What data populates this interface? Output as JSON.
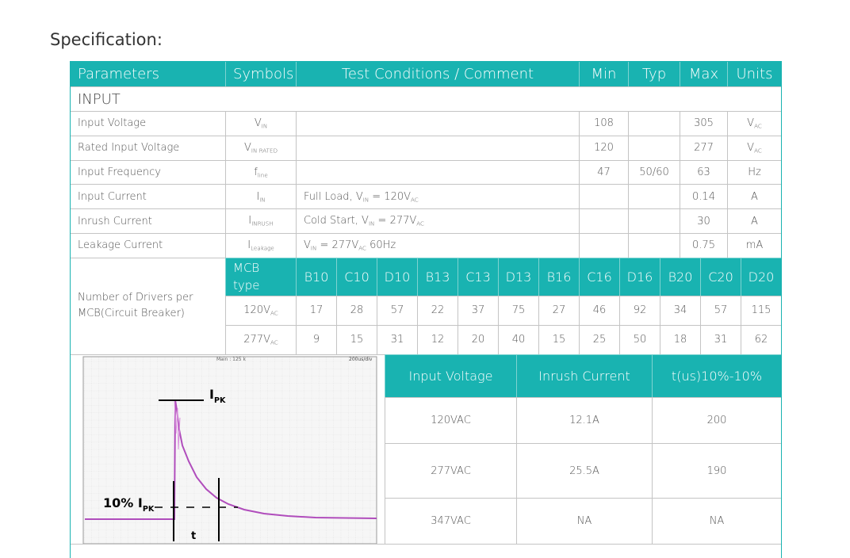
{
  "heading": "Specification:",
  "table": {
    "header": [
      "Parameters",
      "Symbols",
      "Test Conditions / Comment",
      "Min",
      "Typ",
      "Max",
      "Units"
    ],
    "section": "INPUT",
    "rows": [
      {
        "parameter": "Input Voltage",
        "symbol": [
          {
            "text": "V"
          },
          {
            "sub": "IN"
          }
        ],
        "min": 108,
        "max": 305,
        "units": [
          {
            "text": "V"
          },
          {
            "sub": "AC"
          }
        ]
      },
      {
        "parameter": "Rated Input Voltage",
        "symbol": [
          {
            "text": "V"
          },
          {
            "sub": "IN RATED"
          }
        ],
        "min": 120,
        "max": 277,
        "units": [
          {
            "text": "V"
          },
          {
            "sub": "AC"
          }
        ]
      },
      {
        "parameter": "Input Frequency",
        "symbol": [
          {
            "text": "f"
          },
          {
            "sub": "line"
          }
        ],
        "min": 47,
        "typ": "50/60",
        "max": 63,
        "units": [
          {
            "text": "Hz"
          }
        ]
      },
      {
        "parameter": "Input Current",
        "symbol": [
          {
            "text": "I"
          },
          {
            "sub": "IN"
          }
        ],
        "condition": [
          {
            "text": "Full Load, V"
          },
          {
            "sub": "IN"
          },
          {
            "text": " = 120V"
          },
          {
            "sub": "AC"
          }
        ],
        "max": 0.14,
        "units": [
          {
            "text": "A"
          }
        ]
      },
      {
        "parameter": "Inrush Current",
        "symbol": [
          {
            "text": "I"
          },
          {
            "sub": "INRUSH"
          }
        ],
        "condition": [
          {
            "text": "Cold Start, V"
          },
          {
            "sub": "IN"
          },
          {
            "text": " = 277V"
          },
          {
            "sub": "AC"
          }
        ],
        "max": 30,
        "units": [
          {
            "text": "A"
          }
        ]
      },
      {
        "parameter": "Leakage Current",
        "symbol": [
          {
            "text": "I"
          },
          {
            "sub": "Leakage"
          }
        ],
        "condition": [
          {
            "text": "V"
          },
          {
            "sub": "IN"
          },
          {
            "text": " = 277V"
          },
          {
            "sub": "AC"
          },
          {
            "text": " 60Hz"
          }
        ],
        "max": 0.75,
        "units": [
          {
            "text": "mA"
          }
        ]
      }
    ],
    "mcb": {
      "label": "Number of Drivers per MCB(Circuit Breaker)",
      "type_label": "MCB type",
      "types": [
        "B10",
        "C10",
        "D10",
        "B13",
        "C13",
        "D13",
        "B16",
        "C16",
        "D16",
        "B20",
        "C20",
        "D20"
      ],
      "rows": [
        {
          "voltage": [
            {
              "text": "120V"
            },
            {
              "sub": "AC"
            }
          ],
          "counts": [
            17,
            28,
            57,
            22,
            37,
            75,
            27,
            46,
            92,
            34,
            57,
            115
          ]
        },
        {
          "voltage": [
            {
              "text": "277V"
            },
            {
              "sub": "AC"
            }
          ],
          "counts": [
            9,
            15,
            31,
            12,
            20,
            40,
            15,
            25,
            50,
            18,
            31,
            62
          ]
        }
      ]
    }
  },
  "scope": {
    "top_left": "Main : 125 k",
    "top_right": "200us/div",
    "peak_label": [
      {
        "text": "I"
      },
      {
        "sub": "PK"
      }
    ],
    "ten_label": [
      {
        "text": "10% I"
      },
      {
        "sub": "PK"
      }
    ],
    "t_label": "t"
  },
  "inrush": {
    "header": [
      "Input Voltage",
      "Inrush Current",
      "t(us)10%-10%"
    ],
    "rows": [
      [
        "120VAC",
        "12.1A",
        "200"
      ],
      [
        "277VAC",
        "25.5A",
        "190"
      ],
      [
        "347VAC",
        "NA",
        "NA"
      ]
    ]
  }
}
